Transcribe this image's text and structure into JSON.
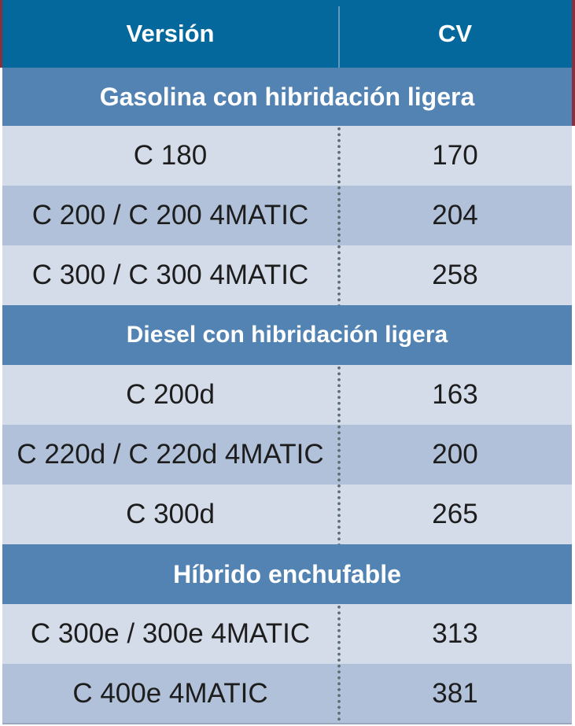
{
  "header": {
    "version_label": "Versión",
    "cv_label": "CV"
  },
  "sections": [
    {
      "title": "Gasolina con hibridación ligera",
      "rows": [
        {
          "version": "C 180",
          "cv": "170"
        },
        {
          "version": "C 200 / C 200 4MATIC",
          "cv": "204"
        },
        {
          "version": "C 300 / C 300 4MATIC",
          "cv": "258"
        }
      ]
    },
    {
      "title": "Diesel con hibridación ligera",
      "rows": [
        {
          "version": "C 200d",
          "cv": "163"
        },
        {
          "version": "C 220d / C 220d 4MATIC",
          "cv": "200"
        },
        {
          "version": "C 300d",
          "cv": "265"
        }
      ]
    },
    {
      "title": "Híbrido enchufable",
      "rows": [
        {
          "version": "C 300e / 300e 4MATIC",
          "cv": "313"
        },
        {
          "version": "C 400e 4MATIC",
          "cv": "381"
        }
      ]
    }
  ],
  "colors": {
    "header_bg": "#04689d",
    "section_bg": "#5283b3",
    "row_light": "#d4dce9",
    "row_dark": "#b1c1d9",
    "accent_edge": "#8a2f3c"
  }
}
